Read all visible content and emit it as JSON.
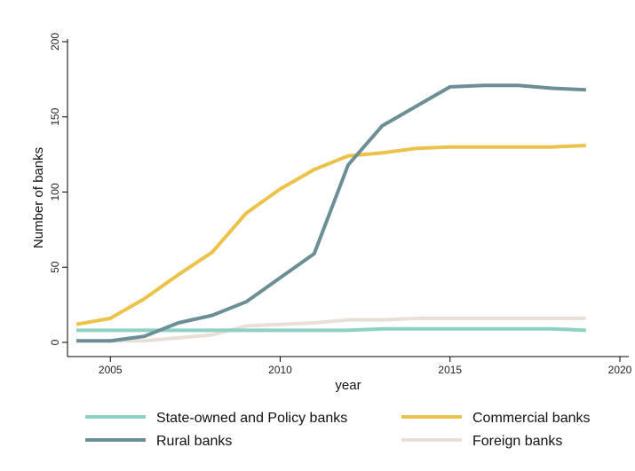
{
  "chart_data": {
    "type": "line",
    "xlabel": "year",
    "ylabel": "Number of banks",
    "xlim": [
      2004,
      2020
    ],
    "ylim": [
      0,
      200
    ],
    "x_ticks": [
      "2005",
      "2010",
      "2015",
      "2020"
    ],
    "y_ticks": [
      "0",
      "50",
      "100",
      "150",
      "200"
    ],
    "grid": false,
    "legend_position": "bottom",
    "x": [
      2004,
      2005,
      2006,
      2007,
      2008,
      2009,
      2010,
      2011,
      2012,
      2013,
      2014,
      2015,
      2016,
      2017,
      2018,
      2019
    ],
    "series": [
      {
        "name": "State-owned and Policy banks",
        "color": "#8fd0c5",
        "values": [
          8,
          8,
          8,
          8,
          8,
          8,
          8,
          8,
          8,
          9,
          9,
          9,
          9,
          9,
          9,
          8
        ]
      },
      {
        "name": "Commercial banks",
        "color": "#ecc24a",
        "values": [
          12,
          16,
          29,
          45,
          60,
          86,
          102,
          115,
          124,
          126,
          129,
          130,
          130,
          130,
          130,
          131
        ]
      },
      {
        "name": "Rural banks",
        "color": "#6b8e97",
        "values": [
          1,
          1,
          4,
          13,
          18,
          27,
          43,
          59,
          118,
          144,
          157,
          170,
          171,
          171,
          169,
          168
        ]
      },
      {
        "name": "Foreign banks",
        "color": "#e8e0d6",
        "values": [
          1,
          1,
          1,
          3,
          5,
          11,
          12,
          13,
          15,
          15,
          16,
          16,
          16,
          16,
          16,
          16
        ]
      }
    ],
    "legend_order": [
      "State-owned and Policy banks",
      "Commercial banks",
      "Rural banks",
      "Foreign banks"
    ]
  }
}
